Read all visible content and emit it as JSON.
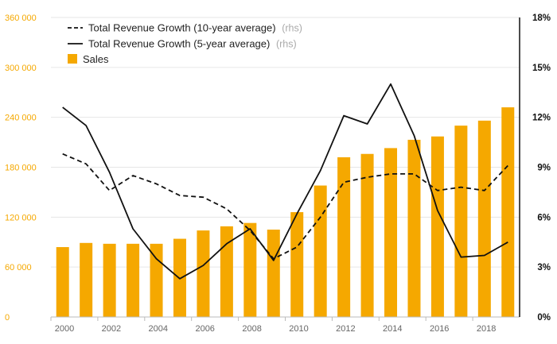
{
  "chart_data": {
    "type": "bar",
    "x": [
      2000,
      2001,
      2002,
      2003,
      2004,
      2005,
      2006,
      2007,
      2008,
      2009,
      2010,
      2011,
      2012,
      2013,
      2014,
      2015,
      2016,
      2017,
      2018,
      2019
    ],
    "xtick_labels": [
      "2000",
      "2002",
      "2004",
      "2006",
      "2008",
      "2010",
      "2012",
      "2014",
      "2016",
      "2018"
    ],
    "y_left": {
      "ylim": [
        0,
        360000
      ],
      "tick_labels": [
        "0",
        "60 000",
        "120 000",
        "180 000",
        "240 000",
        "300 000",
        "360 000"
      ],
      "color": "#f5a800"
    },
    "y_right": {
      "ylim": [
        0,
        18
      ],
      "tick_labels": [
        "0%",
        "3%",
        "6%",
        "9%",
        "12%",
        "15%",
        "18%"
      ],
      "color": "#111111"
    },
    "grid": true,
    "legend_position": "top-left",
    "series": [
      {
        "name": "Sales",
        "type": "bar",
        "axis": "left",
        "color": "#f5a800",
        "values": [
          84000,
          89000,
          88000,
          88000,
          88000,
          94000,
          104000,
          109000,
          113000,
          105000,
          126000,
          158000,
          192000,
          196000,
          203000,
          213000,
          217000,
          230000,
          236000,
          252000
        ]
      },
      {
        "name": "Total Revenue Growth (10-year average)",
        "name_suffix": "(rhs)",
        "type": "line",
        "style": "dashed",
        "axis": "right",
        "color": "#111111",
        "values": [
          9.8,
          9.2,
          7.6,
          8.5,
          8.0,
          7.3,
          7.2,
          6.5,
          5.2,
          3.5,
          4.2,
          6.0,
          8.1,
          8.4,
          8.6,
          8.6,
          7.6,
          7.8,
          7.6,
          9.1
        ]
      },
      {
        "name": "Total Revenue Growth (5-year average)",
        "name_suffix": "(rhs)",
        "type": "line",
        "style": "solid",
        "axis": "right",
        "color": "#111111",
        "values": [
          12.6,
          11.5,
          8.7,
          5.3,
          3.5,
          2.3,
          3.1,
          4.4,
          5.3,
          3.4,
          6.2,
          8.8,
          12.1,
          11.6,
          14.0,
          10.9,
          6.4,
          3.6,
          3.7,
          4.5
        ]
      }
    ]
  }
}
